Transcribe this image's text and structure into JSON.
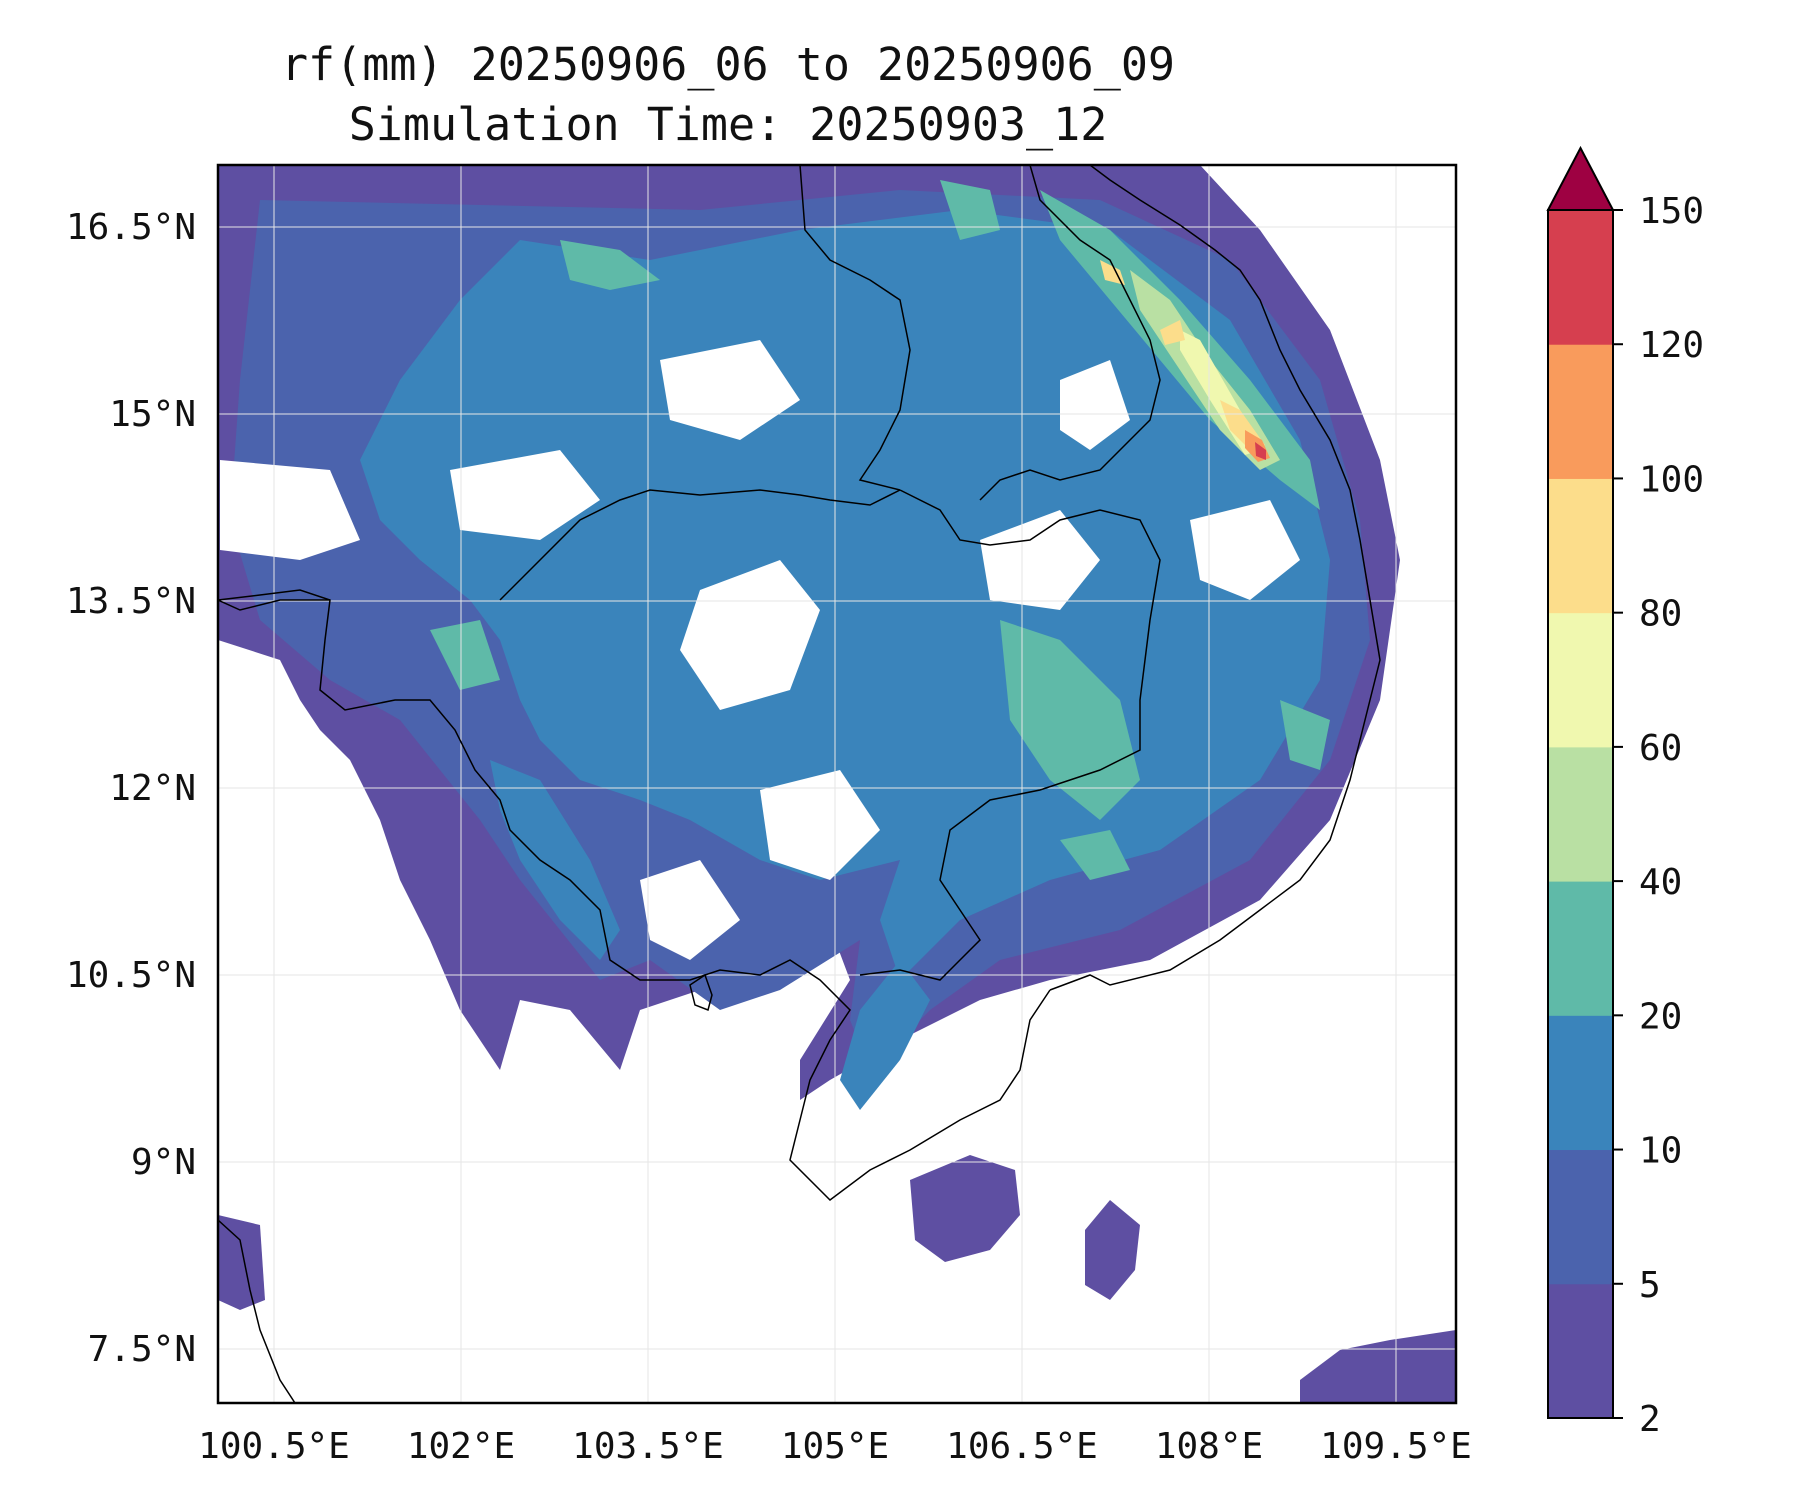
{
  "title": {
    "line1": "rf(mm) 20250906_06 to 20250906_09",
    "line2": "Simulation Time: 20250903_12"
  },
  "map": {
    "lon_ticks": [
      "100.5°E",
      "102°E",
      "103.5°E",
      "105°E",
      "106.5°E",
      "108°E",
      "109.5°E"
    ],
    "lat_ticks": [
      "16.5°N",
      "15°N",
      "13.5°N",
      "12°N",
      "10.5°N",
      "9°N",
      "7.5°N"
    ],
    "gridlines": true,
    "extent": {
      "lon_min": 100.5,
      "lon_max": 110.4,
      "lat_min": 7.0,
      "lat_max": 16.95
    }
  },
  "colorbar": {
    "levels": [
      "2",
      "5",
      "10",
      "20",
      "40",
      "60",
      "80",
      "100",
      "120",
      "150"
    ],
    "colors": [
      "#5e4fa2",
      "#4b63ad",
      "#3a84bb",
      "#5fbaa8",
      "#b9e0a3",
      "#f0f8af",
      "#fcdd8b",
      "#f99b5c",
      "#d63f4f",
      "#9e0142"
    ],
    "extend": "max"
  }
}
